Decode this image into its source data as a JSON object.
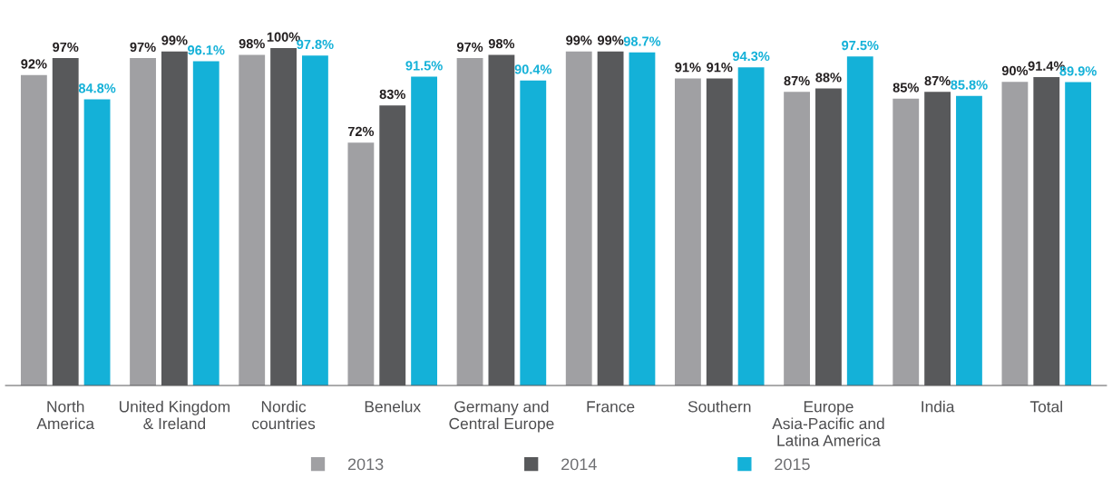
{
  "chart_data": {
    "type": "bar",
    "categories": [
      "North\nAmerica",
      "United Kingdom\n& Ireland",
      "Nordic\ncountries",
      "Benelux",
      "Germany and\nCentral Europe",
      "France",
      "Southern",
      "Europe\nAsia-Pacific and\nLatina America",
      "India",
      "Total"
    ],
    "series": [
      {
        "name": "2013",
        "color": "#a0a0a3",
        "values": [
          92,
          97,
          98,
          72,
          97,
          99,
          91,
          87,
          85,
          90
        ],
        "value_labels": [
          "92%",
          "97%",
          "98%",
          "72%",
          "97%",
          "99%",
          "91%",
          "87%",
          "85%",
          "90%"
        ]
      },
      {
        "name": "2014",
        "color": "#58595b",
        "values": [
          97,
          99,
          100,
          83,
          98,
          99,
          91,
          88,
          87,
          91.4
        ],
        "value_labels": [
          "97%",
          "99%",
          "100%",
          "83%",
          "98%",
          "99%",
          "91%",
          "88%",
          "87%",
          "91.4%"
        ]
      },
      {
        "name": "2015",
        "color": "#14b1d8",
        "values": [
          84.8,
          96.1,
          97.8,
          91.5,
          90.4,
          98.7,
          94.3,
          97.5,
          85.8,
          89.9
        ],
        "value_labels": [
          "84.8%",
          "96.1%",
          "97.8%",
          "91.5%",
          "90.4%",
          "98.7%",
          "94.3%",
          "97.5%",
          "85.8%",
          "89.9%"
        ]
      }
    ],
    "legend": "bottom",
    "grid": false,
    "marker": "square"
  }
}
